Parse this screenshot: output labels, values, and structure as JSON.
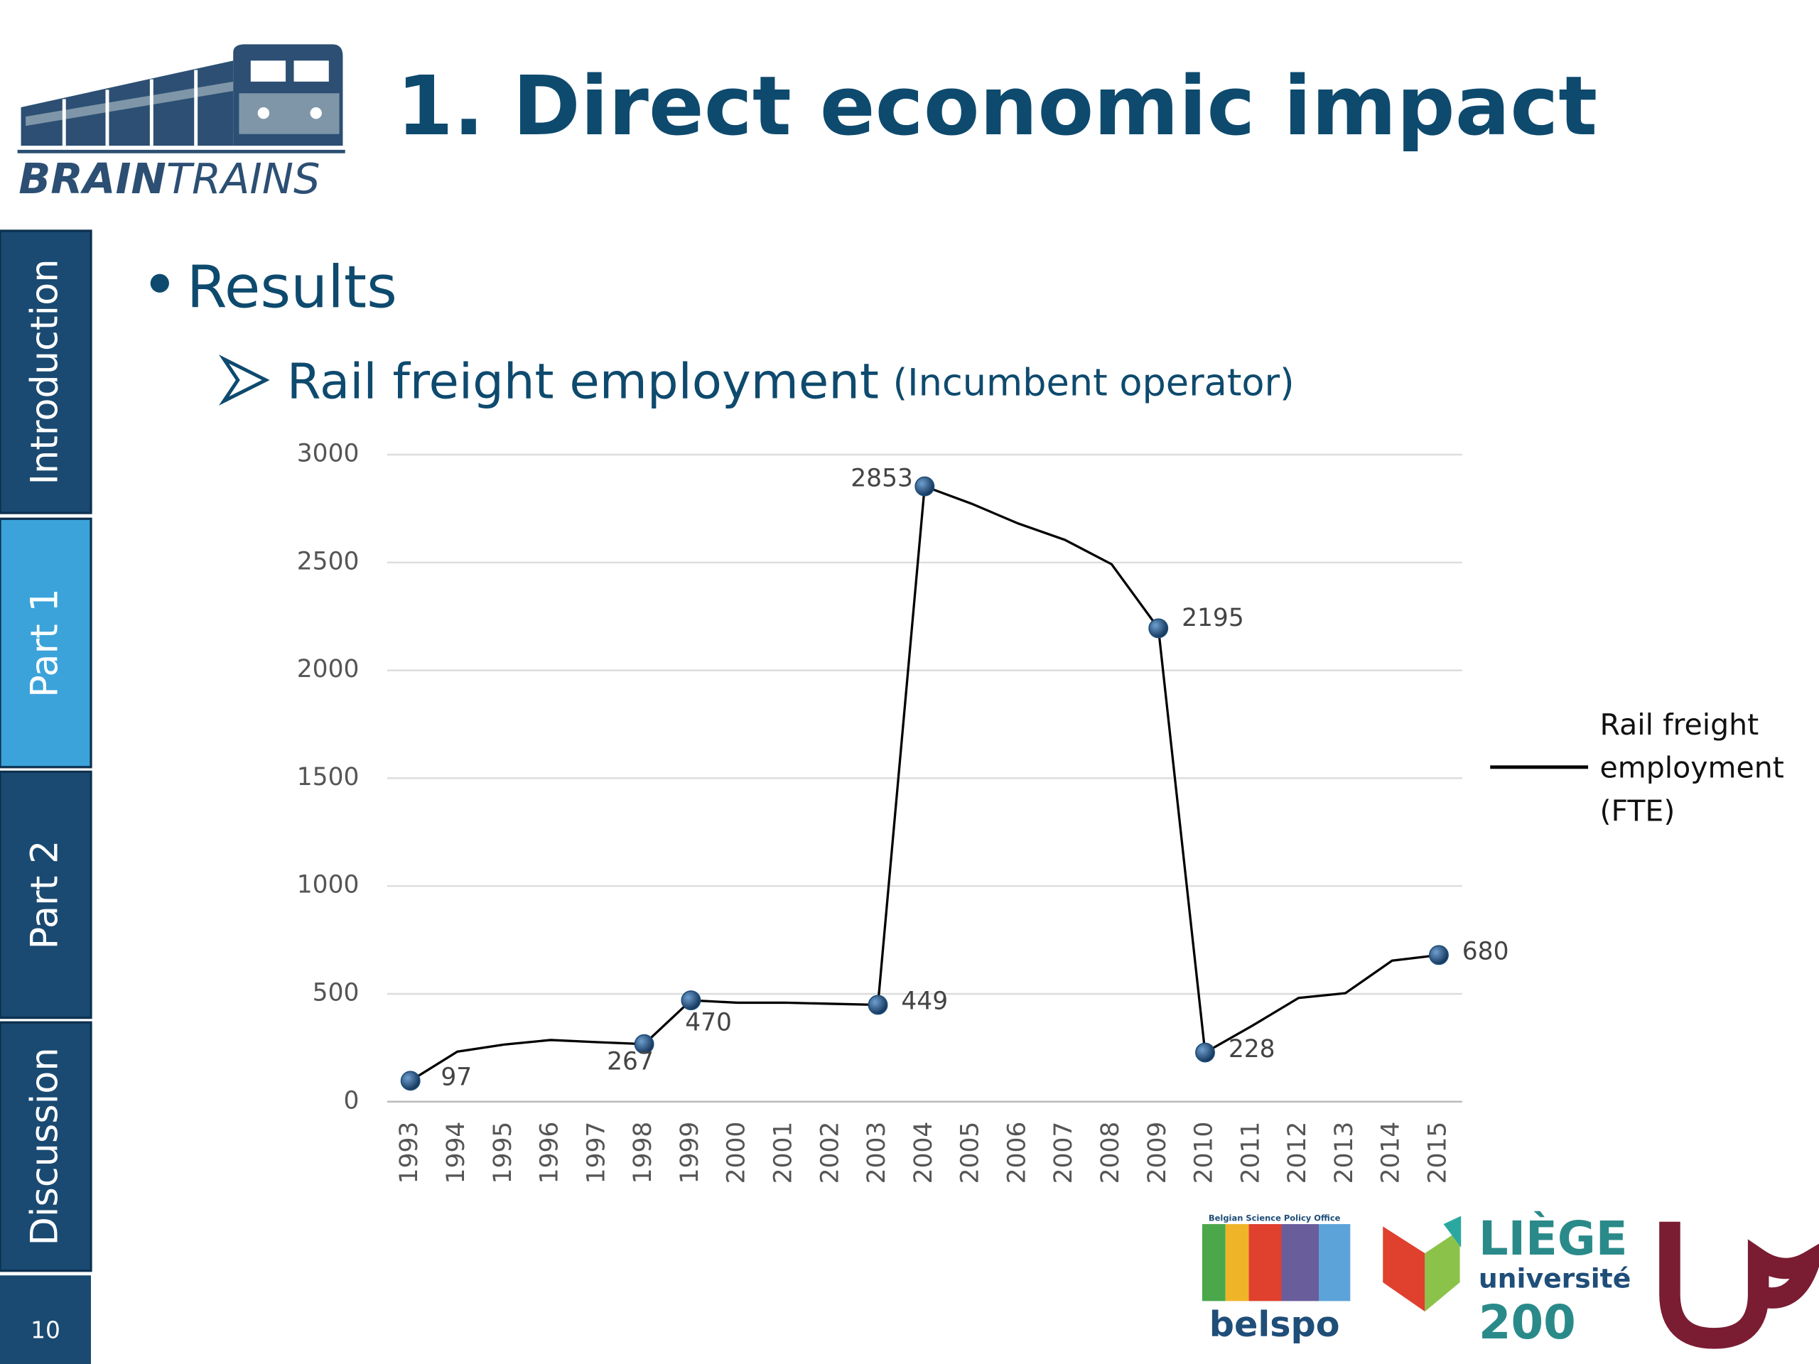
{
  "header": {
    "logo_bold": "BRAIN",
    "logo_light": "TRAINS",
    "title": "1. Direct economic impact"
  },
  "nav": {
    "tabs": [
      "Introduction",
      "Part 1",
      "Part 2",
      "Discussion"
    ],
    "page_number": "10"
  },
  "body": {
    "bullet": "Results",
    "subbullet": "Rail freight employment",
    "subbullet_note": "(Incumbent operator)"
  },
  "chart_data": {
    "type": "line",
    "categories": [
      "1993",
      "1994",
      "1995",
      "1996",
      "1997",
      "1998",
      "1999",
      "2000",
      "2001",
      "2002",
      "2003",
      "2004",
      "2005",
      "2006",
      "2007",
      "2008",
      "2009",
      "2010",
      "2011",
      "2012",
      "2013",
      "2014",
      "2015"
    ],
    "series": [
      {
        "name": "Rail freight employment (FTE)",
        "color": "#000000",
        "values": [
          97,
          232,
          265,
          286,
          276,
          267,
          470,
          459,
          459,
          454,
          449,
          2853,
          2773,
          2681,
          2605,
          2492,
          2195,
          228,
          351,
          481,
          503,
          654,
          680
        ]
      }
    ],
    "marker_indices": [
      0,
      5,
      6,
      10,
      11,
      16,
      17,
      22
    ],
    "marker_color": "#1f4e79",
    "ylim": [
      0,
      3000
    ],
    "yticks": [
      0,
      500,
      1000,
      1500,
      2000,
      2500,
      3000
    ],
    "grid": true,
    "legend": "right"
  },
  "logos": {
    "belspo": "belspo",
    "belspo_caption": "Belgian Science Policy Office",
    "liege": "LIÈGE",
    "universite": "université",
    "anniversary": "200"
  }
}
